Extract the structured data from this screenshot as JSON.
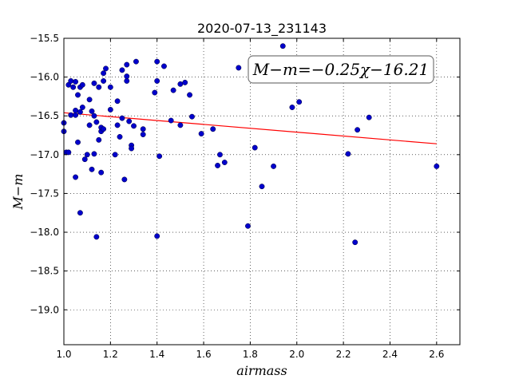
{
  "chart_data": {
    "type": "scatter",
    "title": "2020-07-13_231143",
    "xlabel": "airmass",
    "ylabel": "M−m",
    "xlim": [
      1.0,
      2.7
    ],
    "ylim": [
      -15.5,
      -19.45
    ],
    "y_inverted": true,
    "grid": true,
    "x_ticks": [
      "1.0",
      "1.2",
      "1.4",
      "1.6",
      "1.8",
      "2.0",
      "2.2",
      "2.4",
      "2.6"
    ],
    "y_ticks": [
      "−15.5",
      "−16.0",
      "−16.5",
      "−17.0",
      "−17.5",
      "−18.0",
      "−18.5",
      "−19.0"
    ],
    "annotation": "M−m=−0.25χ−16.21",
    "fit": {
      "slope": -0.25,
      "intercept": -16.21,
      "x_range": [
        1.0,
        2.6
      ],
      "color": "#ff0000"
    },
    "point_color": "#0000cc",
    "points": [
      [
        1.0,
        -16.59
      ],
      [
        1.0,
        -16.7
      ],
      [
        1.01,
        -16.97
      ],
      [
        1.02,
        -16.97
      ],
      [
        1.02,
        -16.1
      ],
      [
        1.03,
        -16.05
      ],
      [
        1.03,
        -16.49
      ],
      [
        1.04,
        -16.13
      ],
      [
        1.05,
        -16.49
      ],
      [
        1.05,
        -16.43
      ],
      [
        1.05,
        -16.06
      ],
      [
        1.05,
        -17.29
      ],
      [
        1.06,
        -16.84
      ],
      [
        1.06,
        -16.23
      ],
      [
        1.07,
        -16.45
      ],
      [
        1.07,
        -16.13
      ],
      [
        1.07,
        -17.75
      ],
      [
        1.08,
        -16.39
      ],
      [
        1.08,
        -16.1
      ],
      [
        1.09,
        -17.06
      ],
      [
        1.1,
        -17.0
      ],
      [
        1.11,
        -16.62
      ],
      [
        1.11,
        -16.29
      ],
      [
        1.12,
        -16.44
      ],
      [
        1.12,
        -17.19
      ],
      [
        1.13,
        -16.5
      ],
      [
        1.13,
        -16.08
      ],
      [
        1.13,
        -16.99
      ],
      [
        1.14,
        -16.58
      ],
      [
        1.14,
        -18.06
      ],
      [
        1.15,
        -16.81
      ],
      [
        1.15,
        -16.13
      ],
      [
        1.16,
        -16.7
      ],
      [
        1.16,
        -17.23
      ],
      [
        1.16,
        -16.65
      ],
      [
        1.17,
        -16.67
      ],
      [
        1.17,
        -16.05
      ],
      [
        1.17,
        -15.95
      ],
      [
        1.18,
        -15.89
      ],
      [
        1.2,
        -16.42
      ],
      [
        1.2,
        -16.13
      ],
      [
        1.22,
        -17.0
      ],
      [
        1.23,
        -16.62
      ],
      [
        1.23,
        -16.31
      ],
      [
        1.24,
        -16.77
      ],
      [
        1.25,
        -15.91
      ],
      [
        1.25,
        -16.53
      ],
      [
        1.26,
        -17.32
      ],
      [
        1.27,
        -16.05
      ],
      [
        1.27,
        -15.99
      ],
      [
        1.27,
        -15.84
      ],
      [
        1.28,
        -16.57
      ],
      [
        1.29,
        -16.88
      ],
      [
        1.29,
        -16.92
      ],
      [
        1.3,
        -16.63
      ],
      [
        1.31,
        -15.8
      ],
      [
        1.34,
        -16.74
      ],
      [
        1.34,
        -16.67
      ],
      [
        1.39,
        -16.2
      ],
      [
        1.4,
        -16.05
      ],
      [
        1.4,
        -15.8
      ],
      [
        1.4,
        -18.05
      ],
      [
        1.41,
        -17.02
      ],
      [
        1.43,
        -15.86
      ],
      [
        1.46,
        -16.56
      ],
      [
        1.47,
        -16.17
      ],
      [
        1.5,
        -16.62
      ],
      [
        1.5,
        -16.09
      ],
      [
        1.52,
        -16.07
      ],
      [
        1.54,
        -16.23
      ],
      [
        1.55,
        -16.51
      ],
      [
        1.59,
        -16.73
      ],
      [
        1.64,
        -16.67
      ],
      [
        1.66,
        -17.14
      ],
      [
        1.67,
        -17.0
      ],
      [
        1.69,
        -17.1
      ],
      [
        1.75,
        -15.88
      ],
      [
        1.79,
        -17.92
      ],
      [
        1.82,
        -16.91
      ],
      [
        1.85,
        -17.41
      ],
      [
        1.9,
        -17.15
      ],
      [
        1.94,
        -15.6
      ],
      [
        1.98,
        -16.39
      ],
      [
        2.01,
        -16.32
      ],
      [
        2.22,
        -16.99
      ],
      [
        2.25,
        -18.13
      ],
      [
        2.26,
        -16.68
      ],
      [
        2.31,
        -16.52
      ],
      [
        2.6,
        -17.15
      ]
    ]
  }
}
